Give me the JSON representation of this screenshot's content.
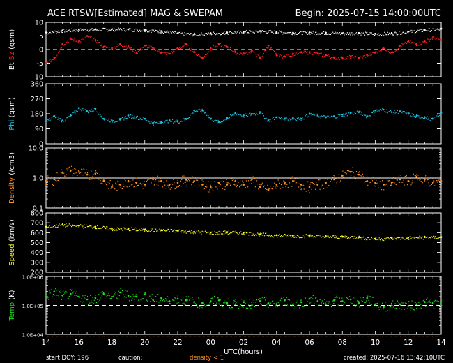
{
  "header": {
    "title": "ACE RTSW[Estimated] MAG & SWEPAM",
    "begin": "Begin: 2025-07-15 14:00:00UTC"
  },
  "footer": {
    "start_doy": "start DOY: 196",
    "caution": "caution:",
    "density_note": "density < 1",
    "created": "created: 2025-07-16 13:42:10UTC"
  },
  "colors": {
    "background": "#000000",
    "frame": "#ffffff",
    "bt": "#ffffff",
    "bz": "#ff2020",
    "phi": "#20c0e0",
    "density": "#ff9020",
    "speed": "#ffff20",
    "temp": "#20e020",
    "missing_marks": "#ff9020"
  },
  "chart_data": {
    "type": "scatter",
    "xlabel": "UTC(hours)",
    "x_tick_labels": [
      "14",
      "16",
      "18",
      "20",
      "22",
      "00",
      "02",
      "04",
      "06",
      "08",
      "10",
      "12",
      "14"
    ],
    "x_range_hours": [
      0,
      24
    ],
    "panels": [
      {
        "id": "mag",
        "ylabel_parts": [
          "Bt",
          "Bz",
          "(gsm)"
        ],
        "yticks": [
          "10",
          "5",
          "0",
          "-5",
          "-10"
        ],
        "ylim": [
          -10,
          10
        ],
        "zero_dashed": 0,
        "series": [
          {
            "name": "Bt",
            "x": [
              0,
              1,
              2,
              3,
              4,
              5,
              6,
              7,
              8,
              9,
              10,
              11,
              12,
              13,
              14,
              15,
              16,
              17,
              18,
              19,
              20,
              21,
              22,
              23,
              24
            ],
            "y": [
              6.3,
              7.0,
              7.3,
              7.4,
              7.5,
              7.4,
              7.2,
              6.8,
              6.0,
              5.6,
              6.0,
              6.3,
              6.5,
              6.8,
              6.5,
              6.2,
              6.3,
              6.2,
              6.0,
              6.1,
              5.8,
              6.0,
              6.6,
              7.2,
              7.6
            ]
          },
          {
            "name": "Bz",
            "x": [
              0,
              0.5,
              1,
              1.5,
              2,
              2.5,
              3,
              3.5,
              4,
              4.5,
              5,
              5.5,
              6,
              6.5,
              7,
              7.5,
              8,
              8.5,
              9,
              9.5,
              10,
              10.5,
              11,
              11.5,
              12,
              12.5,
              13,
              13.5,
              14,
              14.5,
              15,
              15.5,
              16,
              16.5,
              17,
              17.5,
              18,
              18.5,
              19,
              19.5,
              20,
              20.5,
              21,
              21.5,
              22,
              22.5,
              23,
              23.5,
              24
            ],
            "y": [
              -5,
              -3,
              2,
              4,
              3,
              5,
              3.5,
              1,
              0.5,
              2,
              1,
              -1,
              1.5,
              0.5,
              -1,
              -1.5,
              0.5,
              2,
              -1,
              -3,
              0.5,
              2,
              1,
              -1,
              -1.5,
              -0.5,
              -3,
              1.5,
              -2,
              -2.5,
              -1.5,
              -1,
              -1,
              -1.5,
              -2,
              -3,
              -3,
              -2.5,
              -3,
              -2,
              -1,
              0.5,
              -1,
              1.5,
              3,
              2,
              3,
              4.5,
              3.5
            ]
          }
        ]
      },
      {
        "id": "phi",
        "ylabel_parts": [
          "Phi",
          "(gsm)"
        ],
        "yticks": [
          "360",
          "270",
          "180",
          "90",
          "0"
        ],
        "ylim": [
          0,
          360
        ],
        "series": [
          {
            "name": "Phi",
            "x": [
              0,
              0.5,
              1,
              1.5,
              2,
              2.5,
              3,
              3.5,
              4,
              4.5,
              5,
              5.5,
              6,
              6.5,
              7,
              7.5,
              8,
              8.5,
              9,
              9.5,
              10,
              10.5,
              11,
              11.5,
              12,
              12.5,
              13,
              13.5,
              14,
              14.5,
              15,
              15.5,
              16,
              16.5,
              17,
              17.5,
              18,
              18.5,
              19,
              19.5,
              20,
              20.5,
              21,
              21.5,
              22,
              22.5,
              23,
              23.5,
              24
            ],
            "y": [
              135,
              165,
              140,
              170,
              215,
              195,
              210,
              150,
              140,
              145,
              170,
              160,
              150,
              125,
              130,
              140,
              135,
              150,
              200,
              200,
              150,
              130,
              155,
              185,
              170,
              180,
              190,
              140,
              160,
              150,
              155,
              150,
              180,
              170,
              160,
              165,
              175,
              185,
              190,
              165,
              200,
              205,
              190,
              195,
              180,
              165,
              160,
              150,
              185
            ]
          }
        ]
      },
      {
        "id": "density",
        "ylabel_parts": [
          "Density",
          "(/cm3)"
        ],
        "yticks": [
          "10.0",
          "1.0",
          "0.1"
        ],
        "ylim_log10": [
          -1,
          1
        ],
        "solid_line_at": 1.0,
        "series": [
          {
            "name": "Density",
            "x": [
              0,
              0.5,
              1,
              1.5,
              2,
              2.5,
              3,
              3.5,
              4,
              4.5,
              5,
              5.5,
              6,
              6.5,
              7,
              7.5,
              8,
              8.5,
              9,
              9.5,
              10,
              10.5,
              11,
              11.5,
              12,
              12.5,
              13,
              13.5,
              14,
              14.5,
              15,
              15.5,
              16,
              16.5,
              17,
              17.5,
              18,
              18.5,
              19,
              19.5,
              20,
              20.5,
              21,
              21.5,
              22,
              22.5,
              23,
              23.5,
              24
            ],
            "y": [
              0.8,
              0.9,
              1.5,
              1.8,
              1.6,
              1.3,
              1.4,
              0.8,
              0.5,
              0.6,
              0.8,
              0.7,
              0.6,
              0.9,
              0.8,
              0.6,
              0.7,
              0.9,
              0.8,
              0.6,
              0.5,
              0.7,
              0.6,
              0.8,
              0.6,
              0.9,
              0.5,
              0.4,
              0.6,
              0.7,
              0.8,
              0.6,
              0.5,
              0.6,
              0.7,
              0.9,
              1.2,
              1.6,
              1.3,
              0.8,
              0.7,
              0.6,
              0.7,
              0.9,
              0.8,
              1.1,
              0.9,
              0.7,
              0.8
            ]
          }
        ]
      },
      {
        "id": "speed",
        "ylabel_parts": [
          "Speed",
          "(km/s)"
        ],
        "yticks": [
          "800",
          "700",
          "600",
          "500",
          "400",
          "300",
          "200"
        ],
        "ylim": [
          200,
          800
        ],
        "series": [
          {
            "name": "Speed",
            "x": [
              0,
              1,
              2,
              3,
              4,
              5,
              6,
              7,
              8,
              9,
              10,
              11,
              12,
              13,
              14,
              15,
              16,
              17,
              18,
              19,
              20,
              21,
              22,
              23,
              24
            ],
            "y": [
              660,
              680,
              670,
              660,
              640,
              640,
              630,
              625,
              620,
              610,
              600,
              605,
              600,
              585,
              575,
              570,
              570,
              560,
              560,
              555,
              540,
              545,
              550,
              555,
              555
            ]
          }
        ]
      },
      {
        "id": "temp",
        "ylabel_parts": [
          "Temp",
          "(K)"
        ],
        "yticks": [
          "1.0E+06",
          "1.0E+05",
          "1.0E+04"
        ],
        "ylim_log10": [
          4,
          6
        ],
        "dashed_at": 100000,
        "series": [
          {
            "name": "Temp",
            "x": [
              0,
              0.5,
              1,
              1.5,
              2,
              2.5,
              3,
              3.5,
              4,
              4.5,
              5,
              5.5,
              6,
              6.5,
              7,
              7.5,
              8,
              8.5,
              9,
              9.5,
              10,
              10.5,
              11,
              11.5,
              12,
              12.5,
              13,
              13.5,
              14,
              14.5,
              15,
              15.5,
              16,
              16.5,
              17,
              17.5,
              18,
              18.5,
              19,
              19.5,
              20,
              20.5,
              21,
              21.5,
              22,
              22.5,
              23,
              23.5,
              24
            ],
            "y": [
              200000,
              300000,
              220000,
              250000,
              200000,
              160000,
              180000,
              250000,
              200000,
              280000,
              220000,
              200000,
              240000,
              160000,
              180000,
              140000,
              170000,
              150000,
              130000,
              120000,
              140000,
              150000,
              120000,
              110000,
              130000,
              100000,
              140000,
              120000,
              110000,
              150000,
              110000,
              130000,
              170000,
              140000,
              110000,
              150000,
              140000,
              160000,
              120000,
              180000,
              110000,
              90000,
              100000,
              110000,
              95000,
              110000,
              130000,
              120000,
              100000
            ]
          }
        ]
      }
    ]
  }
}
